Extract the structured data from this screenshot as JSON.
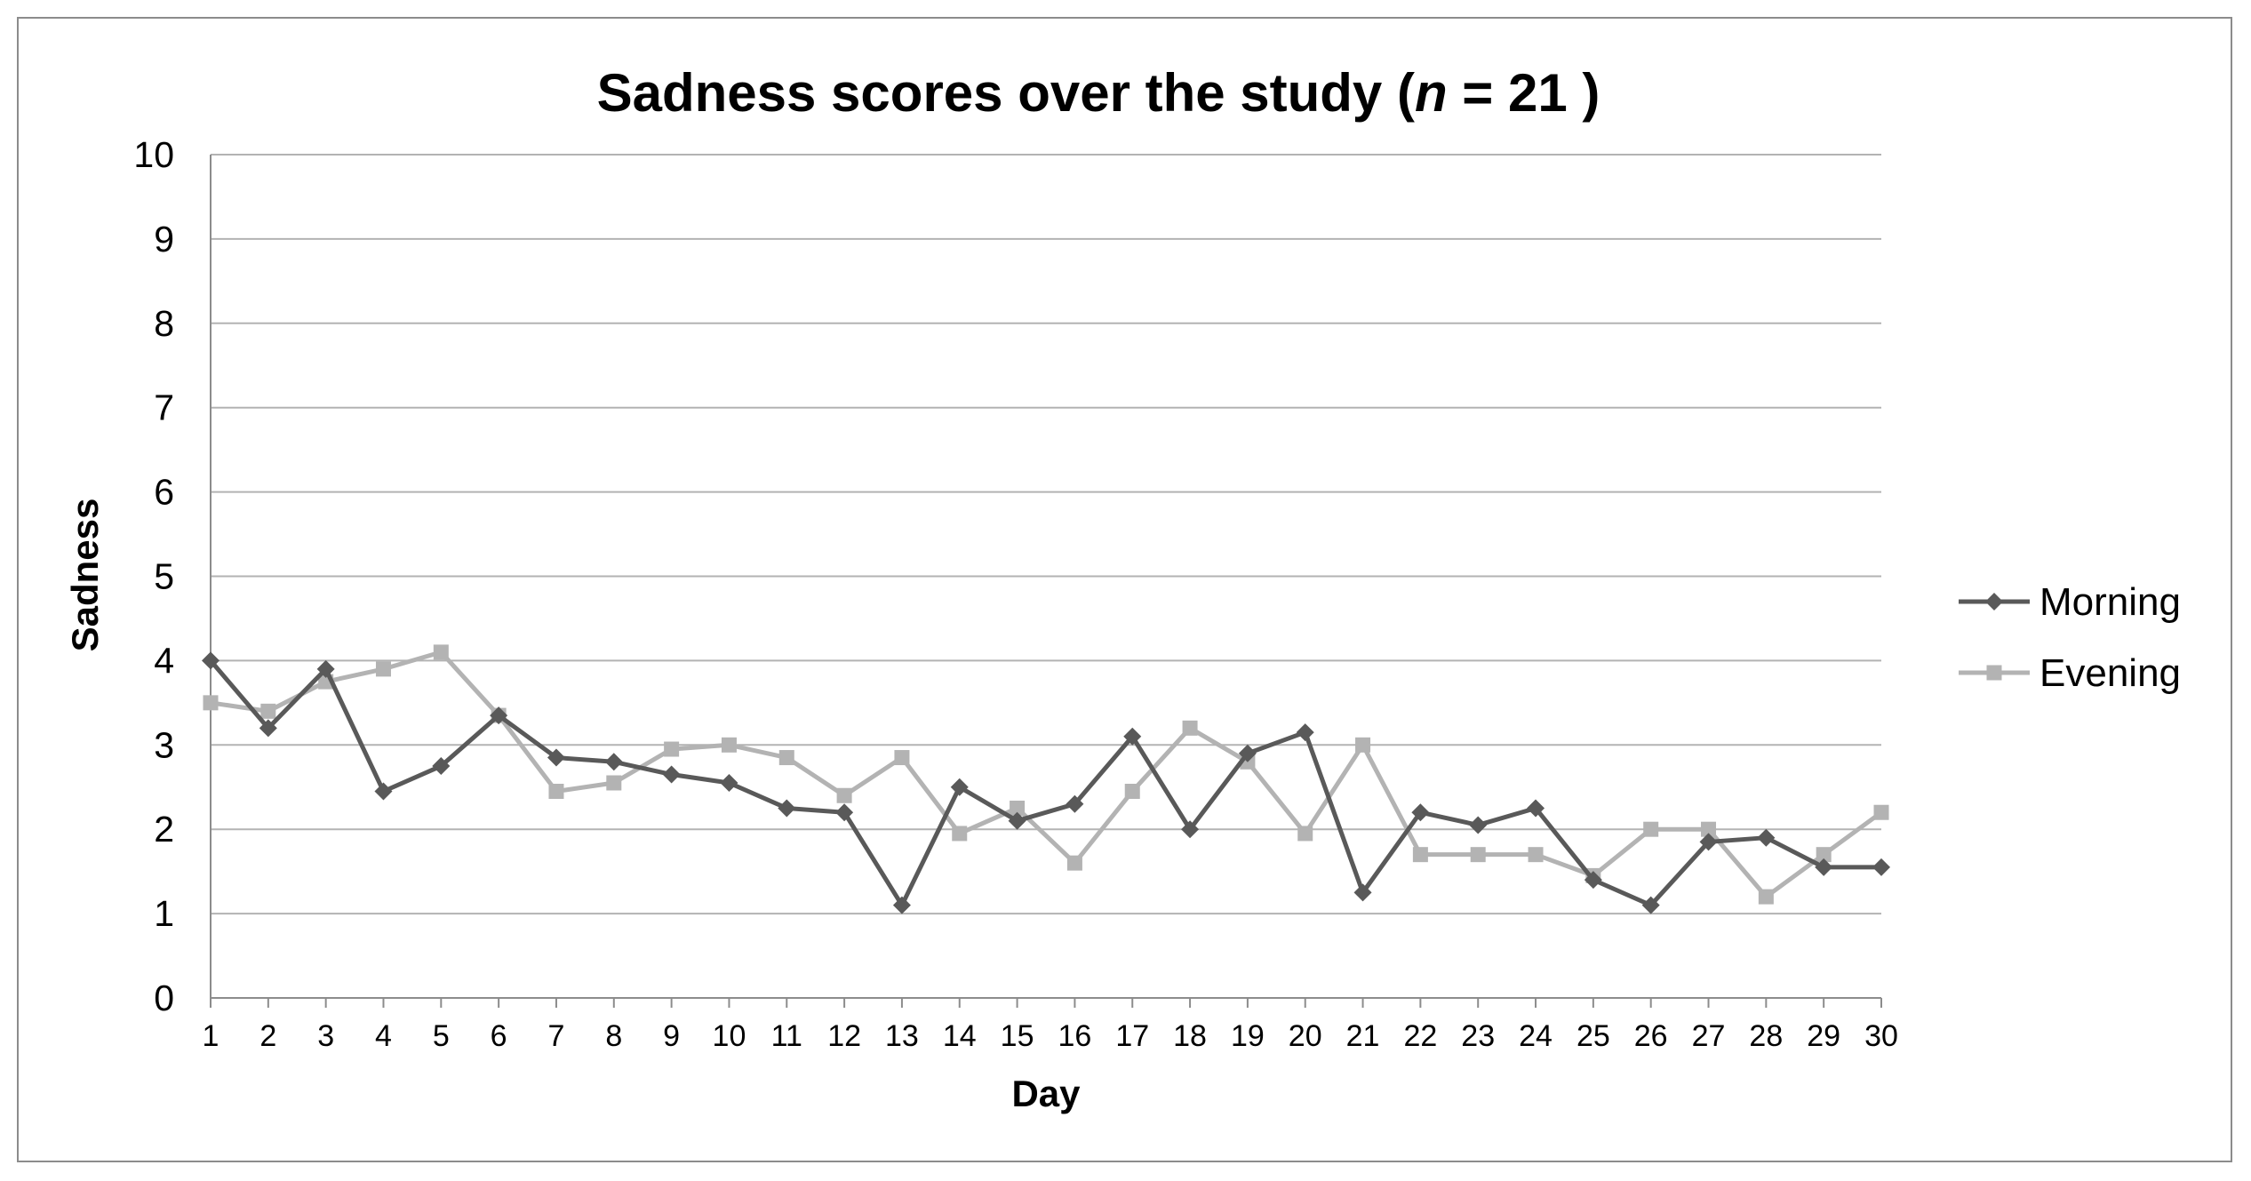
{
  "chart_data": {
    "type": "line",
    "title": {
      "main": "Sadness scores over the study (",
      "italic": "n",
      "rest": " = 21 )"
    },
    "xlabel": "Day",
    "ylabel": "Sadness",
    "ylim": [
      0,
      10
    ],
    "yticks": [
      "0",
      "1",
      "2",
      "3",
      "4",
      "5",
      "6",
      "7",
      "8",
      "9",
      "10"
    ],
    "x": [
      "1",
      "2",
      "3",
      "4",
      "5",
      "6",
      "7",
      "8",
      "9",
      "10",
      "11",
      "12",
      "13",
      "14",
      "15",
      "16",
      "17",
      "18",
      "19",
      "20",
      "21",
      "22",
      "23",
      "24",
      "25",
      "26",
      "27",
      "28",
      "29",
      "30"
    ],
    "grid": true,
    "legend_position": "right",
    "series": [
      {
        "name": "Morning",
        "color": "#595959",
        "marker": "diamond",
        "values": [
          4.0,
          3.2,
          3.9,
          2.45,
          2.75,
          3.35,
          2.85,
          2.8,
          2.65,
          2.55,
          2.25,
          2.2,
          1.1,
          2.5,
          2.1,
          2.3,
          3.1,
          2.0,
          2.9,
          3.15,
          1.25,
          2.2,
          2.05,
          2.25,
          1.4,
          1.1,
          1.85,
          1.9,
          1.55,
          1.55
        ]
      },
      {
        "name": "Evening",
        "color": "#b3b3b3",
        "marker": "square",
        "values": [
          3.5,
          3.4,
          3.75,
          3.9,
          4.1,
          3.35,
          2.45,
          2.55,
          2.95,
          3.0,
          2.85,
          2.4,
          2.85,
          1.95,
          2.25,
          1.6,
          2.45,
          3.2,
          2.8,
          1.95,
          3.0,
          1.7,
          1.7,
          1.7,
          1.45,
          2.0,
          2.0,
          1.2,
          1.7,
          2.2
        ]
      }
    ]
  }
}
